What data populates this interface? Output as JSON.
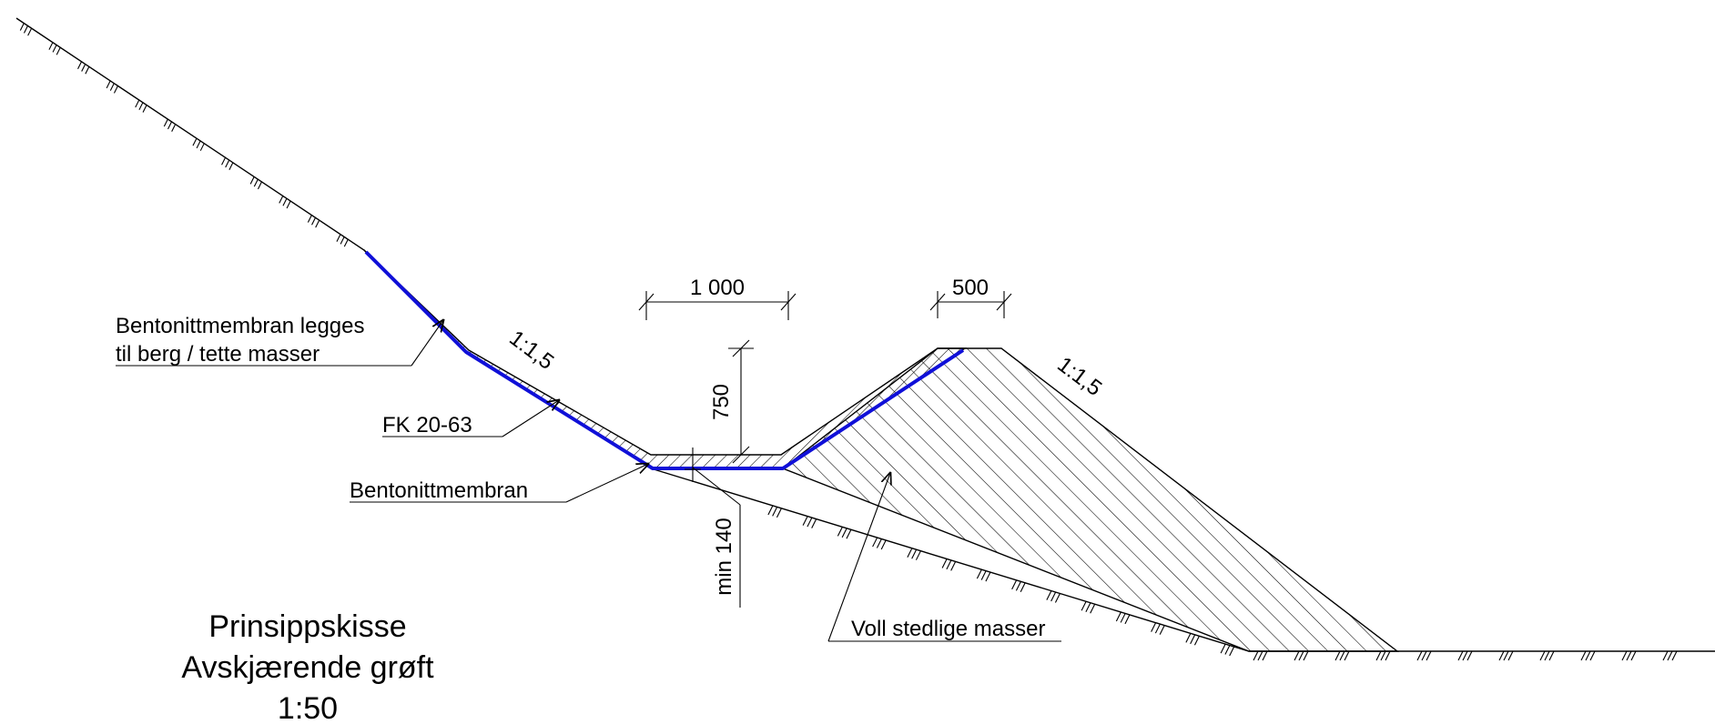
{
  "labels": {
    "membrane_note_line1": "Bentonittmembran legges",
    "membrane_note_line2": "til berg / tette masser",
    "fill_material": "FK 20-63",
    "membrane": "Bentonittmembran",
    "berm_material": "Voll stedlige masser"
  },
  "slopes": {
    "left": "1:1,5",
    "right": "1:1,5"
  },
  "dimensions": {
    "ditch_bottom_width": "1 000",
    "berm_crest_width": "500",
    "depth": "750",
    "min_fill_thickness": "min 140"
  },
  "title": {
    "line1": "Prinsippskisse",
    "line2": "Avskjærende grøft",
    "scale": "1:50"
  },
  "colors": {
    "membrane": "#1010d8",
    "lines": "#000000"
  }
}
